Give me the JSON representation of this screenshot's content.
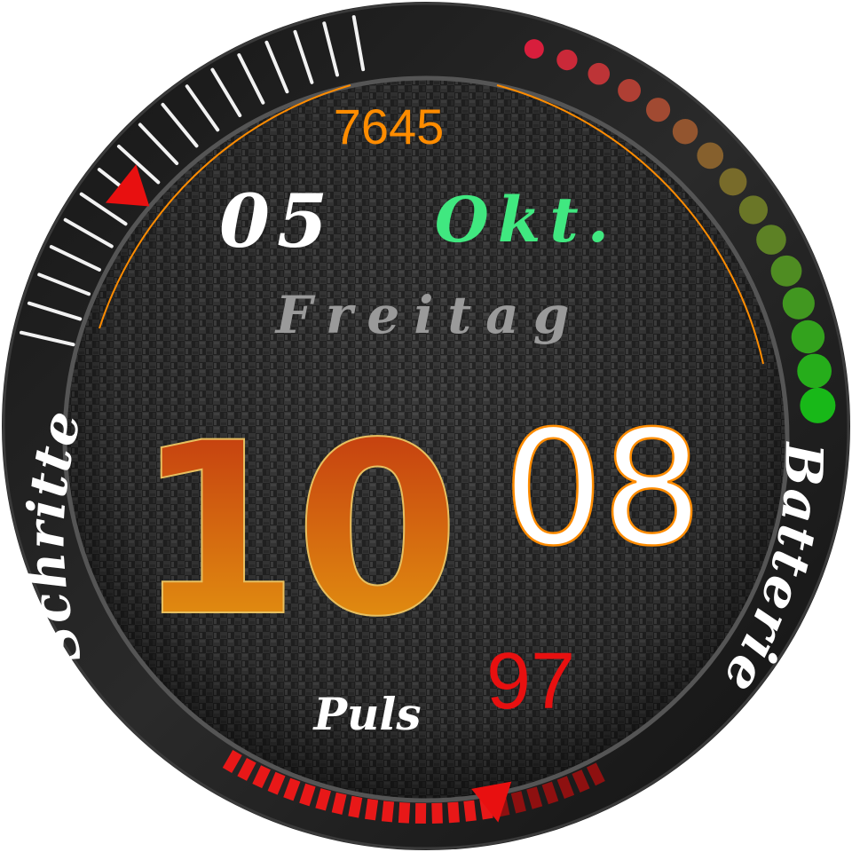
{
  "steps": {
    "label": "Schritte",
    "value": "7645",
    "level": 0.38
  },
  "date": {
    "day": "05",
    "month": "Okt.",
    "weekday": "Freitag"
  },
  "time": {
    "hours": "10",
    "minutes": "08"
  },
  "pulse": {
    "label": "Puls",
    "value": "97",
    "level": 0.72
  },
  "battery": {
    "label": "Batterie",
    "level": 1.0
  },
  "colors": {
    "accent": "#ff8c00",
    "hours_top": "#c03010",
    "hours_bottom": "#e8a010",
    "month": "#40e880",
    "weekday": "#9a9a9a",
    "pulse_value": "#e81010",
    "pulse_bar": "#e81818",
    "battery_start": "#d81e3c",
    "battery_end": "#18b818",
    "marker": "#e81010"
  }
}
